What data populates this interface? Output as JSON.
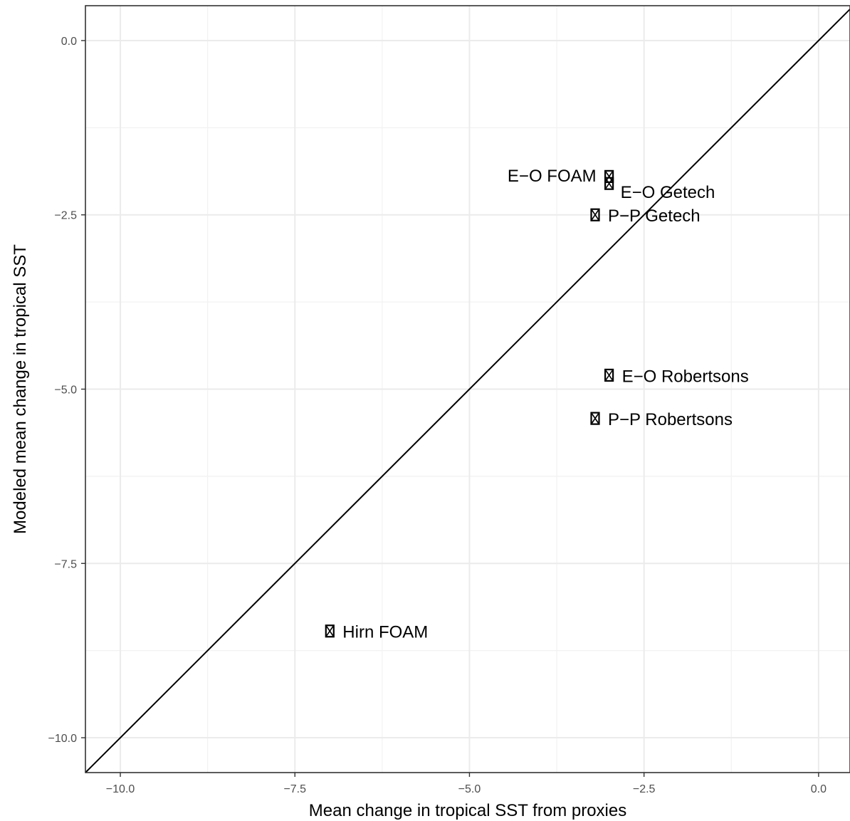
{
  "chart_data": {
    "type": "scatter",
    "title": "",
    "xlabel": "Mean change in tropical SST from proxies",
    "ylabel": "Modeled mean change in tropical SST",
    "xlim": [
      -10.5,
      0.45
    ],
    "ylim": [
      -10.5,
      0.5
    ],
    "x_ticks": [
      -10.0,
      -7.5,
      -5.0,
      -2.5,
      0.0
    ],
    "x_tick_labels": [
      "−10.0",
      "−7.5",
      "−5.0",
      "−2.5",
      "0.0"
    ],
    "y_ticks": [
      -10.0,
      -7.5,
      -5.0,
      -2.5,
      0.0
    ],
    "y_tick_labels": [
      "−10.0",
      "−7.5",
      "−5.0",
      "−2.5",
      "0.0"
    ],
    "grid": true,
    "reference_line": "y = x",
    "points": [
      {
        "label": "E−O FOAM",
        "x": -3.0,
        "y": -1.95,
        "label_side": "left"
      },
      {
        "label": "E−O Getech",
        "x": -3.0,
        "y": -2.05,
        "label_side": "right-below"
      },
      {
        "label": "P−P Getech",
        "x": -3.2,
        "y": -2.5,
        "label_side": "right"
      },
      {
        "label": "E−O Robertsons",
        "x": -3.0,
        "y": -4.8,
        "label_side": "right"
      },
      {
        "label": "P−P Robertsons",
        "x": -3.2,
        "y": -5.42,
        "label_side": "right"
      },
      {
        "label": "Hirn FOAM",
        "x": -7.0,
        "y": -8.47,
        "label_side": "right"
      }
    ]
  }
}
